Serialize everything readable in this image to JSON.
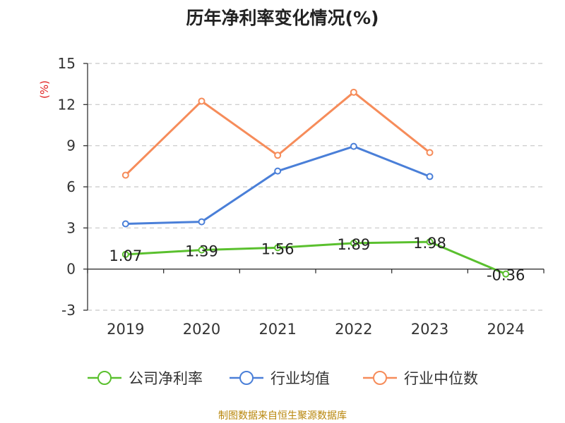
{
  "title": "历年净利率变化情况(%)",
  "source": "制图数据来自恒生聚源数据库",
  "chart_data": {
    "type": "line",
    "title": "历年净利率变化情况(%)",
    "ylabel": "(%)",
    "categories": [
      "2019",
      "2020",
      "2021",
      "2022",
      "2023",
      "2024"
    ],
    "ylim": [
      -3,
      15
    ],
    "yticks": [
      -3,
      0,
      3,
      6,
      9,
      12,
      15
    ],
    "grid": true,
    "legend_position": "bottom",
    "series": [
      {
        "name": "公司净利率",
        "color": "#5ac02e",
        "show_labels": true,
        "value_labels": [
          "1.07",
          "1.39",
          "1.56",
          "1.89",
          "1.98",
          "-0.36"
        ],
        "values": [
          1.07,
          1.39,
          1.56,
          1.89,
          1.98,
          -0.36
        ]
      },
      {
        "name": "行业均值",
        "color": "#4a7fd8",
        "show_labels": false,
        "values": [
          3.3,
          3.45,
          7.15,
          8.95,
          6.75,
          null
        ]
      },
      {
        "name": "行业中位数",
        "color": "#f68c5a",
        "show_labels": false,
        "values": [
          6.85,
          12.25,
          8.3,
          12.9,
          8.5,
          null
        ]
      }
    ]
  }
}
